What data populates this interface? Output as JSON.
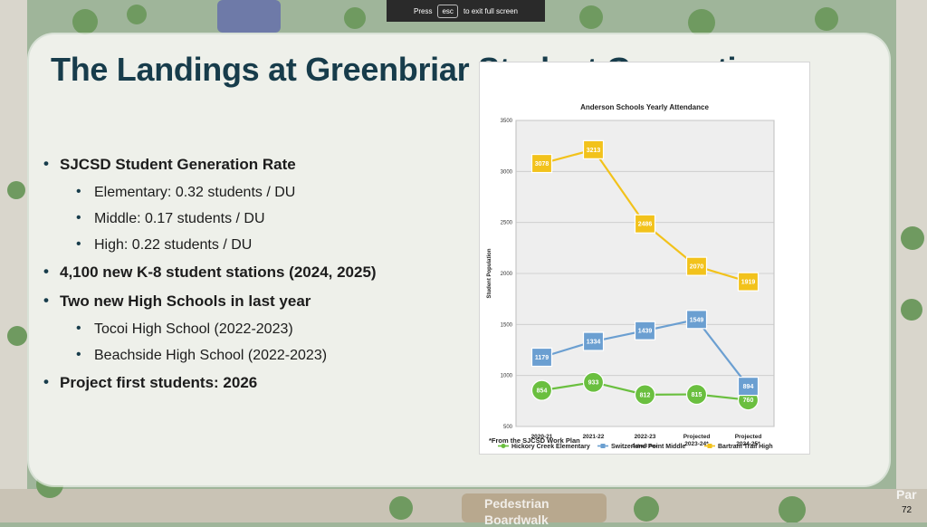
{
  "fullscreen_banner": {
    "press": "Press",
    "key": "esc",
    "rest": "to exit full screen"
  },
  "slide": {
    "title": "The Landings at Greenbriar Student Generation",
    "bullets": [
      {
        "level": 1,
        "text": "SJCSD Student Generation Rate"
      },
      {
        "level": 2,
        "text": "Elementary: 0.32 students / DU"
      },
      {
        "level": 2,
        "text": "Middle: 0.17 students / DU"
      },
      {
        "level": 2,
        "text": "High: 0.22 students / DU"
      },
      {
        "level": 1,
        "text": "4,100 new K-8 student stations (2024, 2025)"
      },
      {
        "level": 1,
        "text": "Two new High Schools in last year"
      },
      {
        "level": 2,
        "text": "Tocoi High School (2022-2023)"
      },
      {
        "level": 2,
        "text": "Beachside High School (2022-2023)"
      },
      {
        "level": 1,
        "text": "Project first students: 2026"
      }
    ],
    "footnote": "*From the SJCSD Work Plan",
    "page_number": "72"
  },
  "map_labels": {
    "pedestrian": "Pedestrian",
    "boardwalk": "Boardwalk",
    "park": "Par"
  },
  "chart_data": {
    "type": "line",
    "title": "Anderson Schools Yearly Attendance",
    "ylabel": "Student Population",
    "xlabel": "School Year",
    "ylim": [
      500,
      3500
    ],
    "yticks": [
      500,
      1000,
      1500,
      2000,
      2500,
      3000,
      3500
    ],
    "categories": [
      [
        "2020-21"
      ],
      [
        "2021-22"
      ],
      [
        "2022-23"
      ],
      [
        "Projected",
        "2023-24*"
      ],
      [
        "Projected",
        "2024-25*"
      ]
    ],
    "grid": true,
    "legend_position": "bottom",
    "series": [
      {
        "name": "Hickory Creek Elementary",
        "color": "#6abf3f",
        "marker": "circle",
        "values": [
          854,
          933,
          812,
          815,
          760
        ]
      },
      {
        "name": "Switzerland Point Middle",
        "color": "#6b9fd1",
        "marker": "square",
        "values": [
          1179,
          1334,
          1439,
          1549,
          894
        ]
      },
      {
        "name": "Bartram Trail High",
        "color": "#f2c21b",
        "marker": "square",
        "values": [
          3078,
          3213,
          2486,
          2070,
          1919
        ]
      }
    ]
  }
}
